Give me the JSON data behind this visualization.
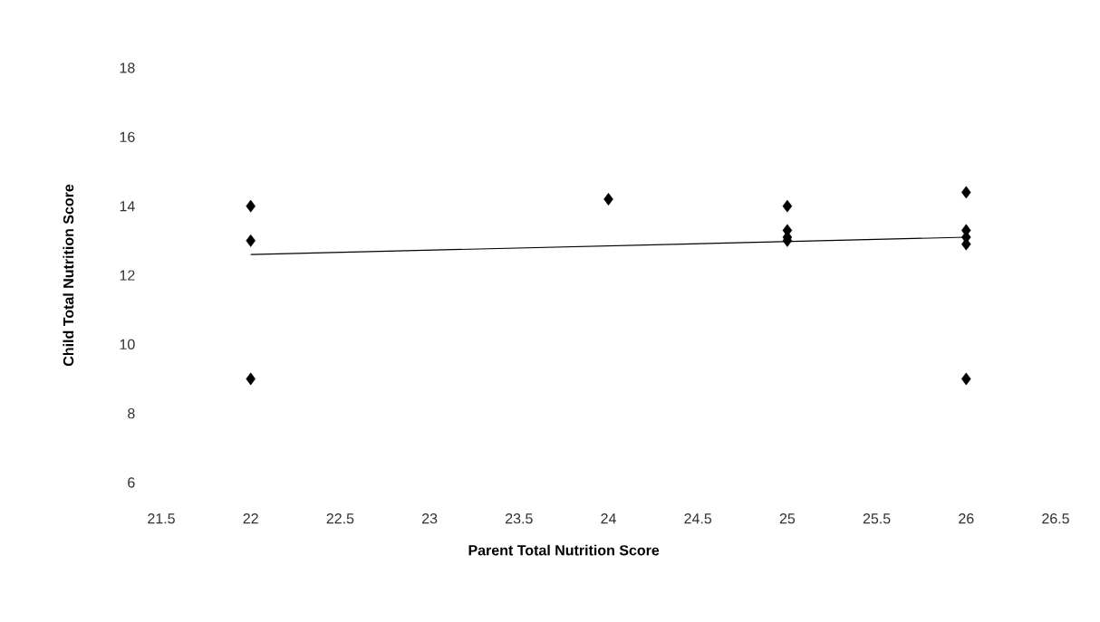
{
  "chart_data": {
    "type": "scatter",
    "xlabel": "Parent Total Nutrition Score",
    "ylabel": "Child Total Nutrition Score",
    "series": [
      {
        "color": "#000000",
        "marker": "diamond",
        "x": [
          22,
          22,
          22,
          24,
          25,
          25,
          25,
          25,
          26,
          26,
          26,
          26,
          26
        ],
        "values": [
          14,
          13,
          9,
          14.2,
          14,
          13.3,
          13.1,
          13,
          14.4,
          13.3,
          13.1,
          12.9,
          9
        ]
      },
      {
        "type": "line",
        "color": "#000000",
        "marker": "none",
        "x": [
          22,
          26
        ],
        "values": [
          12.6,
          13.1
        ]
      }
    ],
    "xlim": [
      21.5,
      26.5
    ],
    "xticks": [
      21.5,
      22,
      22.5,
      23,
      23.5,
      24,
      24.5,
      25,
      25.5,
      26,
      26.5
    ],
    "ylim": [
      6,
      18
    ],
    "yticks": [
      6,
      8,
      10,
      12,
      14,
      16,
      18
    ],
    "grid": false
  }
}
